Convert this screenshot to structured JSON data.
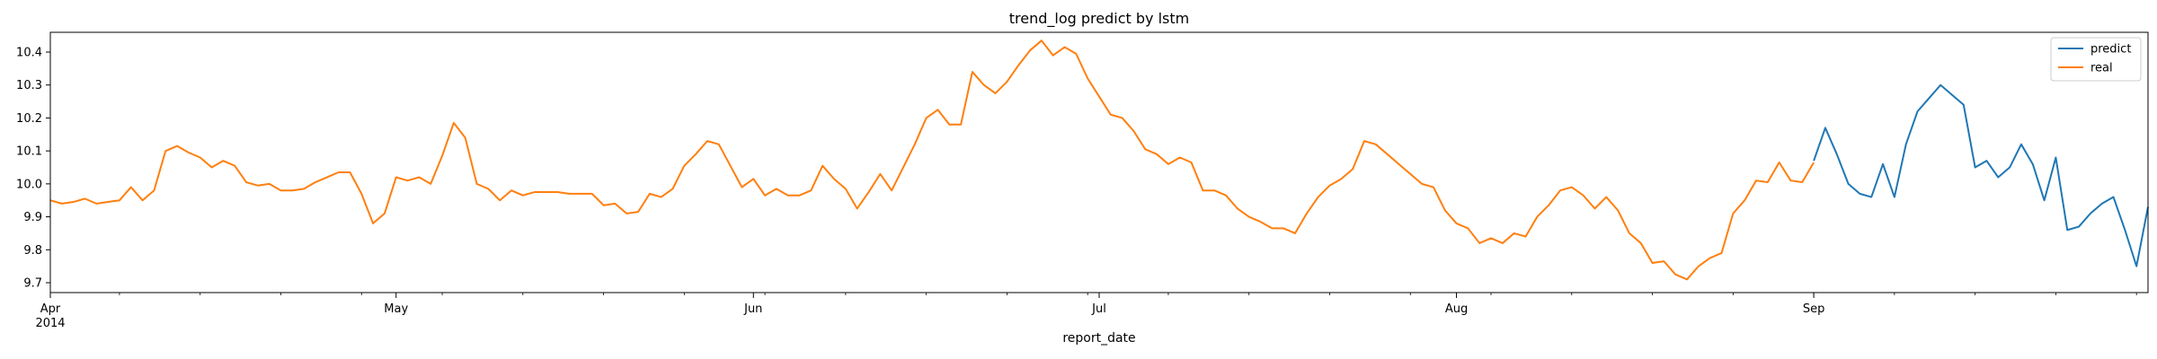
{
  "chart_data": {
    "type": "line",
    "title": "trend_log predict by lstm",
    "xlabel": "report_date",
    "ylabel": "",
    "x_range": [
      "2014-04-01",
      "2014-09-30"
    ],
    "ylim": [
      9.67,
      10.46
    ],
    "yticks": [
      9.7,
      9.8,
      9.9,
      10.0,
      10.1,
      10.2,
      10.3,
      10.4
    ],
    "ytick_labels": [
      "9.7",
      "9.8",
      "9.9",
      "10.0",
      "10.1",
      "10.2",
      "10.3",
      "10.4"
    ],
    "xticks": [
      {
        "date": "2014-04-01",
        "label": "Apr",
        "sublabel": "2014"
      },
      {
        "date": "2014-05-01",
        "label": "May",
        "sublabel": ""
      },
      {
        "date": "2014-06-01",
        "label": "Jun",
        "sublabel": ""
      },
      {
        "date": "2014-07-01",
        "label": "Jul",
        "sublabel": ""
      },
      {
        "date": "2014-08-01",
        "label": "Aug",
        "sublabel": ""
      },
      {
        "date": "2014-09-01",
        "label": "Sep",
        "sublabel": ""
      }
    ],
    "grid": false,
    "legend_position": "top-right",
    "series": [
      {
        "name": "predict",
        "color": "#1f77b4",
        "points": [
          [
            "2014-09-01",
            10.07
          ],
          [
            "2014-09-02",
            10.17
          ],
          [
            "2014-09-03",
            10.09
          ],
          [
            "2014-09-04",
            10.0
          ],
          [
            "2014-09-05",
            9.97
          ],
          [
            "2014-09-06",
            9.96
          ],
          [
            "2014-09-07",
            10.06
          ],
          [
            "2014-09-08",
            9.96
          ],
          [
            "2014-09-09",
            10.12
          ],
          [
            "2014-09-10",
            10.22
          ],
          [
            "2014-09-11",
            10.26
          ],
          [
            "2014-09-12",
            10.3
          ],
          [
            "2014-09-13",
            10.27
          ],
          [
            "2014-09-14",
            10.24
          ],
          [
            "2014-09-15",
            10.05
          ],
          [
            "2014-09-16",
            10.07
          ],
          [
            "2014-09-17",
            10.02
          ],
          [
            "2014-09-18",
            10.05
          ],
          [
            "2014-09-19",
            10.12
          ],
          [
            "2014-09-20",
            10.06
          ],
          [
            "2014-09-21",
            9.95
          ],
          [
            "2014-09-22",
            10.08
          ],
          [
            "2014-09-23",
            9.86
          ],
          [
            "2014-09-24",
            9.87
          ],
          [
            "2014-09-25",
            9.91
          ],
          [
            "2014-09-26",
            9.94
          ],
          [
            "2014-09-27",
            9.96
          ],
          [
            "2014-09-28",
            9.86
          ],
          [
            "2014-09-29",
            9.75
          ],
          [
            "2014-09-30",
            9.93
          ]
        ]
      },
      {
        "name": "real",
        "color": "#ff7f0e",
        "points": [
          [
            "2014-04-01",
            9.95
          ],
          [
            "2014-04-02",
            9.94
          ],
          [
            "2014-04-03",
            9.945
          ],
          [
            "2014-04-04",
            9.955
          ],
          [
            "2014-04-05",
            9.94
          ],
          [
            "2014-04-06",
            9.945
          ],
          [
            "2014-04-07",
            9.95
          ],
          [
            "2014-04-08",
            9.99
          ],
          [
            "2014-04-09",
            9.95
          ],
          [
            "2014-04-10",
            9.98
          ],
          [
            "2014-04-11",
            10.1
          ],
          [
            "2014-04-12",
            10.115
          ],
          [
            "2014-04-13",
            10.095
          ],
          [
            "2014-04-14",
            10.08
          ],
          [
            "2014-04-15",
            10.05
          ],
          [
            "2014-04-16",
            10.07
          ],
          [
            "2014-04-17",
            10.055
          ],
          [
            "2014-04-18",
            10.005
          ],
          [
            "2014-04-19",
            9.995
          ],
          [
            "2014-04-20",
            10.0
          ],
          [
            "2014-04-21",
            9.98
          ],
          [
            "2014-04-22",
            9.98
          ],
          [
            "2014-04-23",
            9.985
          ],
          [
            "2014-04-24",
            10.005
          ],
          [
            "2014-04-25",
            10.02
          ],
          [
            "2014-04-26",
            10.035
          ],
          [
            "2014-04-27",
            10.035
          ],
          [
            "2014-04-28",
            9.97
          ],
          [
            "2014-04-29",
            9.88
          ],
          [
            "2014-04-30",
            9.91
          ],
          [
            "2014-05-01",
            10.02
          ],
          [
            "2014-05-02",
            10.01
          ],
          [
            "2014-05-03",
            10.02
          ],
          [
            "2014-05-04",
            10.0
          ],
          [
            "2014-05-05",
            10.085
          ],
          [
            "2014-05-06",
            10.185
          ],
          [
            "2014-05-07",
            10.14
          ],
          [
            "2014-05-08",
            10.0
          ],
          [
            "2014-05-09",
            9.985
          ],
          [
            "2014-05-10",
            9.95
          ],
          [
            "2014-05-11",
            9.98
          ],
          [
            "2014-05-12",
            9.965
          ],
          [
            "2014-05-13",
            9.975
          ],
          [
            "2014-05-14",
            9.975
          ],
          [
            "2014-05-15",
            9.975
          ],
          [
            "2014-05-16",
            9.97
          ],
          [
            "2014-05-17",
            9.97
          ],
          [
            "2014-05-18",
            9.97
          ],
          [
            "2014-05-19",
            9.935
          ],
          [
            "2014-05-20",
            9.94
          ],
          [
            "2014-05-21",
            9.91
          ],
          [
            "2014-05-22",
            9.915
          ],
          [
            "2014-05-23",
            9.97
          ],
          [
            "2014-05-24",
            9.96
          ],
          [
            "2014-05-25",
            9.985
          ],
          [
            "2014-05-26",
            10.055
          ],
          [
            "2014-05-27",
            10.09
          ],
          [
            "2014-05-28",
            10.13
          ],
          [
            "2014-05-29",
            10.12
          ],
          [
            "2014-05-30",
            10.055
          ],
          [
            "2014-05-31",
            9.99
          ],
          [
            "2014-06-01",
            10.015
          ],
          [
            "2014-06-02",
            9.965
          ],
          [
            "2014-06-03",
            9.985
          ],
          [
            "2014-06-04",
            9.965
          ],
          [
            "2014-06-05",
            9.965
          ],
          [
            "2014-06-06",
            9.98
          ],
          [
            "2014-06-07",
            10.055
          ],
          [
            "2014-06-08",
            10.015
          ],
          [
            "2014-06-09",
            9.985
          ],
          [
            "2014-06-10",
            9.925
          ],
          [
            "2014-06-11",
            9.975
          ],
          [
            "2014-06-12",
            10.03
          ],
          [
            "2014-06-13",
            9.98
          ],
          [
            "2014-06-14",
            10.05
          ],
          [
            "2014-06-15",
            10.12
          ],
          [
            "2014-06-16",
            10.2
          ],
          [
            "2014-06-17",
            10.225
          ],
          [
            "2014-06-18",
            10.18
          ],
          [
            "2014-06-19",
            10.18
          ],
          [
            "2014-06-20",
            10.34
          ],
          [
            "2014-06-21",
            10.3
          ],
          [
            "2014-06-22",
            10.275
          ],
          [
            "2014-06-23",
            10.31
          ],
          [
            "2014-06-24",
            10.36
          ],
          [
            "2014-06-25",
            10.405
          ],
          [
            "2014-06-26",
            10.435
          ],
          [
            "2014-06-27",
            10.39
          ],
          [
            "2014-06-28",
            10.415
          ],
          [
            "2014-06-29",
            10.395
          ],
          [
            "2014-06-30",
            10.32
          ],
          [
            "2014-07-01",
            10.265
          ],
          [
            "2014-07-02",
            10.21
          ],
          [
            "2014-07-03",
            10.2
          ],
          [
            "2014-07-04",
            10.16
          ],
          [
            "2014-07-05",
            10.105
          ],
          [
            "2014-07-06",
            10.09
          ],
          [
            "2014-07-07",
            10.06
          ],
          [
            "2014-07-08",
            10.08
          ],
          [
            "2014-07-09",
            10.065
          ],
          [
            "2014-07-10",
            9.98
          ],
          [
            "2014-07-11",
            9.98
          ],
          [
            "2014-07-12",
            9.965
          ],
          [
            "2014-07-13",
            9.925
          ],
          [
            "2014-07-14",
            9.9
          ],
          [
            "2014-07-15",
            9.885
          ],
          [
            "2014-07-16",
            9.865
          ],
          [
            "2014-07-17",
            9.865
          ],
          [
            "2014-07-18",
            9.85
          ],
          [
            "2014-07-19",
            9.91
          ],
          [
            "2014-07-20",
            9.96
          ],
          [
            "2014-07-21",
            9.995
          ],
          [
            "2014-07-22",
            10.015
          ],
          [
            "2014-07-23",
            10.045
          ],
          [
            "2014-07-24",
            10.13
          ],
          [
            "2014-07-25",
            10.12
          ],
          [
            "2014-07-26",
            10.09
          ],
          [
            "2014-07-27",
            10.06
          ],
          [
            "2014-07-28",
            10.03
          ],
          [
            "2014-07-29",
            10.0
          ],
          [
            "2014-07-30",
            9.99
          ],
          [
            "2014-07-31",
            9.92
          ],
          [
            "2014-08-01",
            9.88
          ],
          [
            "2014-08-02",
            9.865
          ],
          [
            "2014-08-03",
            9.82
          ],
          [
            "2014-08-04",
            9.835
          ],
          [
            "2014-08-05",
            9.82
          ],
          [
            "2014-08-06",
            9.85
          ],
          [
            "2014-08-07",
            9.84
          ],
          [
            "2014-08-08",
            9.9
          ],
          [
            "2014-08-09",
            9.935
          ],
          [
            "2014-08-10",
            9.98
          ],
          [
            "2014-08-11",
            9.99
          ],
          [
            "2014-08-12",
            9.965
          ],
          [
            "2014-08-13",
            9.925
          ],
          [
            "2014-08-14",
            9.96
          ],
          [
            "2014-08-15",
            9.92
          ],
          [
            "2014-08-16",
            9.85
          ],
          [
            "2014-08-17",
            9.82
          ],
          [
            "2014-08-18",
            9.76
          ],
          [
            "2014-08-19",
            9.765
          ],
          [
            "2014-08-20",
            9.725
          ],
          [
            "2014-08-21",
            9.71
          ],
          [
            "2014-08-22",
            9.75
          ],
          [
            "2014-08-23",
            9.775
          ],
          [
            "2014-08-24",
            9.79
          ],
          [
            "2014-08-25",
            9.91
          ],
          [
            "2014-08-26",
            9.95
          ],
          [
            "2014-08-27",
            10.01
          ],
          [
            "2014-08-28",
            10.005
          ],
          [
            "2014-08-29",
            10.065
          ],
          [
            "2014-08-30",
            10.01
          ],
          [
            "2014-08-31",
            10.005
          ],
          [
            "2014-09-01",
            10.065
          ]
        ]
      }
    ]
  }
}
